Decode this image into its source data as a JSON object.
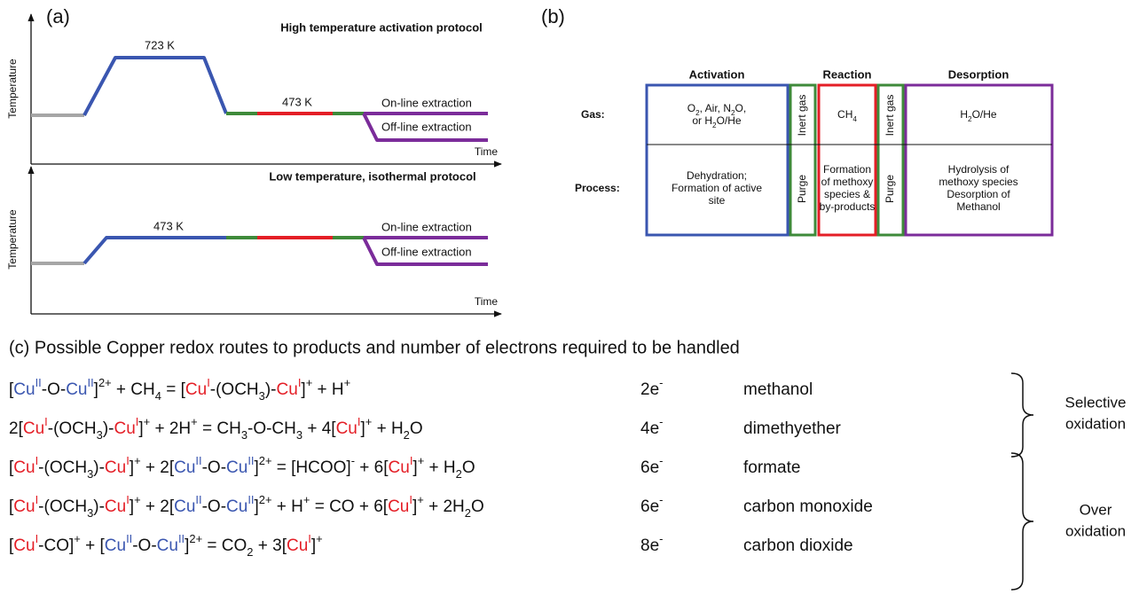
{
  "panel_a": {
    "label": "(a)",
    "plots": [
      {
        "title": "High temperature activation protocol",
        "y_axis": "Temperature",
        "x_axis": "Time",
        "hold_label": "723 K",
        "reaction_label": "473 K",
        "online": "On-line extraction",
        "offline": "Off-line extraction"
      },
      {
        "title": "Low temperature, isothermal protocol",
        "y_axis": "Temperature",
        "x_axis": "Time",
        "hold_label": "473 K",
        "online": "On-line extraction",
        "offline": "Off-line extraction"
      }
    ]
  },
  "panel_b": {
    "label": "(b)",
    "headers": [
      {
        "text": "Activation",
        "color": "blue"
      },
      {
        "text": "Reaction",
        "color": "red"
      },
      {
        "text": "Desorption",
        "color": "purple"
      }
    ],
    "rows": [
      "Gas:",
      "Process:"
    ],
    "cells": [
      [
        [
          [
            {
              "t": "O"
            },
            {
              "t": "2",
              "p": "sub"
            },
            {
              "t": ", Air, N"
            },
            {
              "t": "2",
              "p": "sub"
            },
            {
              "t": "O,"
            }
          ],
          [
            {
              "t": "or H"
            },
            {
              "t": "2",
              "p": "sub"
            },
            {
              "t": "O/He"
            }
          ]
        ],
        [
          [
            {
              "t": "Inert gas"
            }
          ]
        ],
        [
          [
            {
              "t": "CH"
            },
            {
              "t": "4",
              "p": "sub"
            }
          ]
        ],
        [
          [
            {
              "t": "Inert gas"
            }
          ]
        ],
        [
          [
            {
              "t": "H"
            },
            {
              "t": "2",
              "p": "sub"
            },
            {
              "t": "O/He"
            }
          ]
        ]
      ],
      [
        [
          [
            {
              "t": "Dehydration;"
            }
          ],
          [
            {
              "t": "Formation of active"
            }
          ],
          [
            {
              "t": "site"
            }
          ]
        ],
        [
          [
            {
              "t": "Purge"
            }
          ]
        ],
        [
          [
            {
              "t": "Formation"
            }
          ],
          [
            {
              "t": "of methoxy"
            }
          ],
          [
            {
              "t": "species &"
            }
          ],
          [
            {
              "t": "by-products"
            }
          ]
        ],
        [
          [
            {
              "t": "Purge"
            }
          ]
        ],
        [
          [
            {
              "t": "Hydrolysis of"
            }
          ],
          [
            {
              "t": "methoxy species"
            }
          ],
          [
            {
              "t": "Desorption of"
            }
          ],
          [
            {
              "t": "Methanol"
            }
          ]
        ]
      ]
    ]
  },
  "panel_c": {
    "title": "(c) Possible Copper redox routes to products and number of electrons required to be handled",
    "routes": [
      {
        "equation": [
          {
            "t": "["
          },
          {
            "t": "Cu",
            "c": "blue"
          },
          {
            "t": "II",
            "c": "blue",
            "p": "sup"
          },
          {
            "t": "-O-"
          },
          {
            "t": "Cu",
            "c": "blue"
          },
          {
            "t": "II",
            "c": "blue",
            "p": "sup"
          },
          {
            "t": "]"
          },
          {
            "t": "2+",
            "p": "sup"
          },
          {
            "t": " + CH"
          },
          {
            "t": "4",
            "p": "sub"
          },
          {
            "t": " = ["
          },
          {
            "t": "Cu",
            "c": "red"
          },
          {
            "t": "I",
            "c": "red",
            "p": "sup"
          },
          {
            "t": "-(OCH"
          },
          {
            "t": "3",
            "p": "sub"
          },
          {
            "t": ")-"
          },
          {
            "t": "Cu",
            "c": "red"
          },
          {
            "t": "I",
            "c": "red",
            "p": "sup"
          },
          {
            "t": "]"
          },
          {
            "t": "+",
            "p": "sup"
          },
          {
            "t": " + H"
          },
          {
            "t": "+",
            "p": "sup"
          }
        ],
        "electrons": [
          {
            "t": "2e"
          },
          {
            "t": "-",
            "p": "sup"
          }
        ],
        "product": "methanol"
      },
      {
        "equation": [
          {
            "t": "2["
          },
          {
            "t": "Cu",
            "c": "red"
          },
          {
            "t": "I",
            "c": "red",
            "p": "sup"
          },
          {
            "t": "-(OCH"
          },
          {
            "t": "3",
            "p": "sub"
          },
          {
            "t": ")-"
          },
          {
            "t": "Cu",
            "c": "red"
          },
          {
            "t": "I",
            "c": "red",
            "p": "sup"
          },
          {
            "t": "]"
          },
          {
            "t": "+",
            "p": "sup"
          },
          {
            "t": " + 2H"
          },
          {
            "t": "+",
            "p": "sup"
          },
          {
            "t": " = CH"
          },
          {
            "t": "3",
            "p": "sub"
          },
          {
            "t": "-O-CH"
          },
          {
            "t": "3",
            "p": "sub"
          },
          {
            "t": " + 4["
          },
          {
            "t": "Cu",
            "c": "red"
          },
          {
            "t": "I",
            "c": "red",
            "p": "sup"
          },
          {
            "t": "]"
          },
          {
            "t": "+",
            "p": "sup"
          },
          {
            "t": " + H"
          },
          {
            "t": "2",
            "p": "sub"
          },
          {
            "t": "O"
          }
        ],
        "electrons": [
          {
            "t": "4e"
          },
          {
            "t": "-",
            "p": "sup"
          }
        ],
        "product": "dimethyether"
      },
      {
        "equation": [
          {
            "t": "["
          },
          {
            "t": "Cu",
            "c": "red"
          },
          {
            "t": "I",
            "c": "red",
            "p": "sup"
          },
          {
            "t": "-(OCH"
          },
          {
            "t": "3",
            "p": "sub"
          },
          {
            "t": ")-"
          },
          {
            "t": "Cu",
            "c": "red"
          },
          {
            "t": "I",
            "c": "red",
            "p": "sup"
          },
          {
            "t": "]"
          },
          {
            "t": "+",
            "p": "sup"
          },
          {
            "t": " + 2["
          },
          {
            "t": "Cu",
            "c": "blue"
          },
          {
            "t": "II",
            "c": "blue",
            "p": "sup"
          },
          {
            "t": "-O-"
          },
          {
            "t": "Cu",
            "c": "blue"
          },
          {
            "t": "II",
            "c": "blue",
            "p": "sup"
          },
          {
            "t": "]"
          },
          {
            "t": "2+",
            "p": "sup"
          },
          {
            "t": " = [HCOO]"
          },
          {
            "t": "-",
            "p": "sup"
          },
          {
            "t": " + 6["
          },
          {
            "t": "Cu",
            "c": "red"
          },
          {
            "t": "I",
            "c": "red",
            "p": "sup"
          },
          {
            "t": "]"
          },
          {
            "t": "+",
            "p": "sup"
          },
          {
            "t": " + H"
          },
          {
            "t": "2",
            "p": "sub"
          },
          {
            "t": "O"
          }
        ],
        "electrons": [
          {
            "t": "6e"
          },
          {
            "t": "-",
            "p": "sup"
          }
        ],
        "product": "formate"
      },
      {
        "equation": [
          {
            "t": "["
          },
          {
            "t": "Cu",
            "c": "red"
          },
          {
            "t": "I",
            "c": "red",
            "p": "sup"
          },
          {
            "t": "-(OCH"
          },
          {
            "t": "3",
            "p": "sub"
          },
          {
            "t": ")-"
          },
          {
            "t": "Cu",
            "c": "red"
          },
          {
            "t": "I",
            "c": "red",
            "p": "sup"
          },
          {
            "t": "]"
          },
          {
            "t": "+",
            "p": "sup"
          },
          {
            "t": " + 2["
          },
          {
            "t": "Cu",
            "c": "blue"
          },
          {
            "t": "II",
            "c": "blue",
            "p": "sup"
          },
          {
            "t": "-O-"
          },
          {
            "t": "Cu",
            "c": "blue"
          },
          {
            "t": "II",
            "c": "blue",
            "p": "sup"
          },
          {
            "t": "]"
          },
          {
            "t": "2+",
            "p": "sup"
          },
          {
            "t": " + H"
          },
          {
            "t": "+",
            "p": "sup"
          },
          {
            "t": " = CO + 6["
          },
          {
            "t": "Cu",
            "c": "red"
          },
          {
            "t": "I",
            "c": "red",
            "p": "sup"
          },
          {
            "t": "]"
          },
          {
            "t": "+",
            "p": "sup"
          },
          {
            "t": " + 2H"
          },
          {
            "t": "2",
            "p": "sub"
          },
          {
            "t": "O"
          }
        ],
        "electrons": [
          {
            "t": "6e"
          },
          {
            "t": "-",
            "p": "sup"
          }
        ],
        "product": "carbon monoxide"
      },
      {
        "equation": [
          {
            "t": "["
          },
          {
            "t": "Cu",
            "c": "red"
          },
          {
            "t": "I",
            "c": "red",
            "p": "sup"
          },
          {
            "t": "-CO]"
          },
          {
            "t": "+",
            "p": "sup"
          },
          {
            "t": " + ["
          },
          {
            "t": "Cu",
            "c": "blue"
          },
          {
            "t": "II",
            "c": "blue",
            "p": "sup"
          },
          {
            "t": "-O-"
          },
          {
            "t": "Cu",
            "c": "blue"
          },
          {
            "t": "II",
            "c": "blue",
            "p": "sup"
          },
          {
            "t": "]"
          },
          {
            "t": "2+",
            "p": "sup"
          },
          {
            "t": " = CO"
          },
          {
            "t": "2",
            "p": "sub"
          },
          {
            "t": " + 3["
          },
          {
            "t": "Cu",
            "c": "red"
          },
          {
            "t": "I",
            "c": "red",
            "p": "sup"
          },
          {
            "t": "]"
          },
          {
            "t": "+",
            "p": "sup"
          }
        ],
        "electrons": [
          {
            "t": "8e"
          },
          {
            "t": "-",
            "p": "sup"
          }
        ],
        "product": "carbon dioxide"
      }
    ],
    "groups": [
      {
        "label": [
          "Selective",
          "oxidation"
        ]
      },
      {
        "label": [
          "Over",
          "oxidation"
        ]
      }
    ]
  }
}
